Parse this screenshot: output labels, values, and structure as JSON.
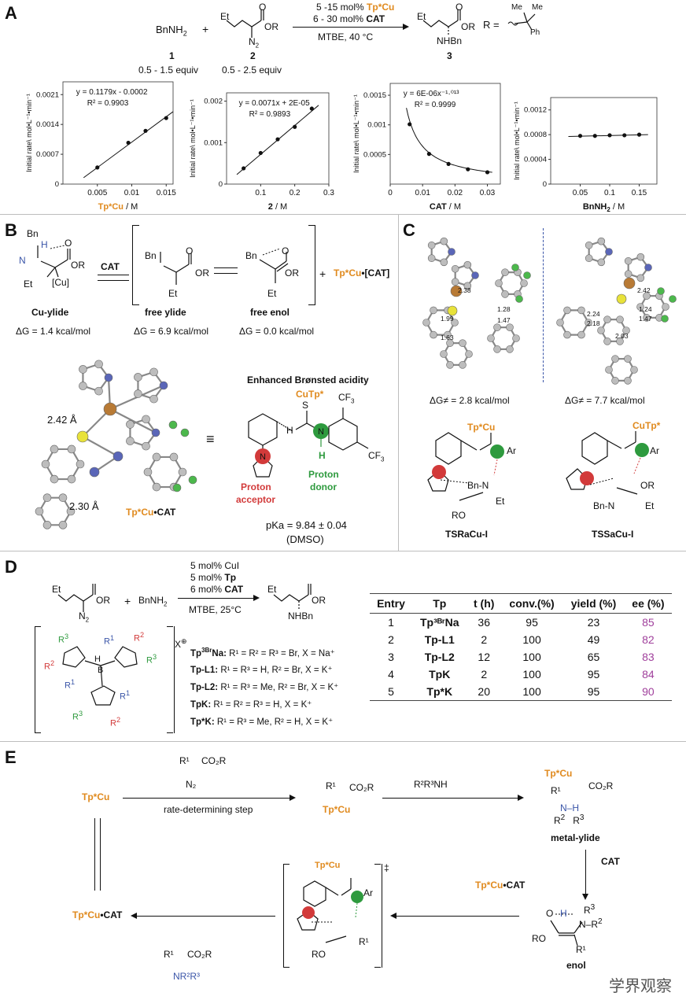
{
  "panels": {
    "A": "A",
    "B": "B",
    "C": "C",
    "D": "D",
    "E": "E"
  },
  "panelA": {
    "reagent1": "BnNH",
    "reagent1_sub": "2",
    "plus": "+",
    "reagent2_label": "2",
    "reagent1_label": "1",
    "equiv1": "0.5 - 1.5 equiv",
    "equiv2": "0.5 - 2.5 equiv",
    "cond_line1_pre": "5 -15 mol% ",
    "cond_line1_cat": "Tp*Cu",
    "cond_line2_pre": "6 - 30 mol% ",
    "cond_line2_cat": "CAT",
    "cond_line3": "MTBE, 40 °C",
    "product_label": "3",
    "r_eq": "R =",
    "frag_et": "Et",
    "frag_or": "OR",
    "frag_n2": "N",
    "frag_nhbn": "NHBn",
    "frag_me": "Me",
    "frag_ph": "Ph"
  },
  "chart_data": [
    {
      "type": "scatter",
      "ylabel": "Initial rate\\ mol•L⁻¹•min⁻¹",
      "xlabel_colored": "Tp*Cu",
      "xlabel_rest": " / M",
      "equation": "y = 0.1179x - 0.0002",
      "r2": "R² = 0.9903",
      "xlim": [
        0,
        0.016
      ],
      "ylim": [
        0,
        0.0024
      ],
      "xticks": [
        "0.005",
        "0.01",
        "0.015"
      ],
      "xtickvals": [
        0.005,
        0.01,
        0.015
      ],
      "yticks": [
        "0",
        "0.0007",
        "0.0014",
        "0.0021"
      ],
      "ytickvals": [
        0,
        0.0007,
        0.0014,
        0.0021
      ],
      "x": [
        0.005,
        0.0095,
        0.012,
        0.015
      ],
      "y": [
        0.00039,
        0.00097,
        0.00125,
        0.00155
      ],
      "fit": [
        [
          0.003,
          0.00015
        ],
        [
          0.016,
          0.0017
        ]
      ]
    },
    {
      "type": "scatter",
      "ylabel": "Initial rate\\ mol•L⁻¹•min⁻¹",
      "xlabel_colored": "",
      "xlabel_bold": "2",
      "xlabel_rest": " / M",
      "equation": "y = 0.0071x + 2E-05",
      "r2": "R² = 0.9893",
      "xlim": [
        0,
        0.3
      ],
      "ylim": [
        0,
        0.0022
      ],
      "xticks": [
        "0.1",
        "0.2",
        "0.3"
      ],
      "xtickvals": [
        0.1,
        0.2,
        0.3
      ],
      "yticks": [
        "0",
        "0.001",
        "0.002"
      ],
      "ytickvals": [
        0,
        0.001,
        0.002
      ],
      "x": [
        0.05,
        0.1,
        0.15,
        0.2,
        0.25
      ],
      "y": [
        0.00038,
        0.00075,
        0.00108,
        0.00138,
        0.00182
      ],
      "fit": [
        [
          0.03,
          0.00023
        ],
        [
          0.27,
          0.0019
        ]
      ]
    },
    {
      "type": "scatter",
      "ylabel": "Initial rate\\ mol•L⁻¹•min⁻¹",
      "xlabel_colored": "",
      "xlabel_bold": "CAT",
      "xlabel_rest": " / M",
      "equation": "y = 6E-06x⁻¹·⁰¹³",
      "r2": "R² = 0.9999",
      "xlim": [
        0,
        0.034
      ],
      "ylim": [
        0,
        0.0017
      ],
      "xticks": [
        "0",
        "0.01",
        "0.02",
        "0.03"
      ],
      "xtickvals": [
        0,
        0.01,
        0.02,
        0.03
      ],
      "yticks": [
        "0.0005",
        "0.001",
        "0.0015"
      ],
      "ytickvals": [
        0.0005,
        0.001,
        0.0015
      ],
      "x": [
        0.006,
        0.012,
        0.018,
        0.024,
        0.03
      ],
      "y": [
        0.00101,
        0.00051,
        0.00034,
        0.00025,
        0.0002
      ],
      "curve": true
    },
    {
      "type": "scatter",
      "ylabel": "Initial rate\\ mol•L⁻¹•min⁻¹",
      "xlabel_colored": "",
      "xlabel_bold": "BnNH",
      "xlabel_sub": "2",
      "xlabel_rest": " / M",
      "equation": "",
      "r2": "",
      "xlim": [
        0,
        0.18
      ],
      "ylim": [
        0,
        0.0014
      ],
      "xticks": [
        "0.05",
        "0.1",
        "0.15"
      ],
      "xtickvals": [
        0.05,
        0.1,
        0.15
      ],
      "yticks": [
        "0",
        "0.0004",
        "0.0008",
        "0.0012"
      ],
      "ytickvals": [
        0,
        0.0004,
        0.0008,
        0.0012
      ],
      "x": [
        0.05,
        0.075,
        0.1,
        0.125,
        0.15
      ],
      "y": [
        0.00078,
        0.00078,
        0.00079,
        0.00079,
        0.0008
      ],
      "fit": [
        [
          0.03,
          0.00077
        ],
        [
          0.165,
          0.0008
        ]
      ]
    }
  ],
  "panelB": {
    "cu_ylide": "Cu-ylide",
    "dg1": "ΔG = 1.4 kcal/mol",
    "cat": "CAT",
    "free_ylide": "free ylide",
    "dg2": "ΔG = 6.9 kcal/mol",
    "free_enol": "free enol",
    "dg3": "ΔG = 0.0 kcal/mol",
    "plus": "+",
    "tpcu": "Tp*Cu",
    "cat_bracket": "•[CAT]",
    "bn": "Bn",
    "h": "H",
    "n": "N",
    "o": "O",
    "or": "OR",
    "et": "Et",
    "cu": "[Cu]",
    "dist1": "2.42 Å",
    "dist2": "2.30 Å",
    "complex_a": "Tp*Cu",
    "complex_b": "•CAT",
    "acidity": "Enhanced Brønsted acidity",
    "cf3a": "CF",
    "cf3b": "CF",
    "three": "3",
    "cutp": "CuTp*",
    "proton_acceptor1": "Proton",
    "proton_acceptor2": "acceptor",
    "proton_donor1": "Proton",
    "proton_donor2": "donor",
    "pka": "pKa = 9.84 ± 0.04",
    "dmso": "(DMSO)",
    "s": "S"
  },
  "panelC": {
    "dga": "ΔG≠ = 2.8 kcal/mol",
    "dgb": "ΔG≠ = 7.7 kcal/mol",
    "ts1": "TSRaCu-I",
    "ts2": "TSSaCu-I",
    "d1": "2.38",
    "d2": "1.99",
    "d3": "1.28",
    "d4": "1.47",
    "d5": "1.63",
    "e1": "2.42",
    "e2": "2.24",
    "e3": "1.24",
    "e4": "1.47",
    "e5": "2.18",
    "e6": "2.03",
    "tpcu": "Tp*Cu",
    "cutp": "CuTp*",
    "ar": "Ar",
    "bn_n": "Bn-N",
    "ro": "RO",
    "et": "Et",
    "or": "OR"
  },
  "panelD": {
    "cond1": "5 mol% CuI",
    "cond2_pre": "5 mol% ",
    "cond2_b": "Tp",
    "cond3_pre": "6 mol% ",
    "cond3_b": "CAT",
    "cond4": "MTBE, 25°C",
    "plus": "+",
    "bnnh2": "BnNH",
    "two": "2",
    "et": "Et",
    "or": "OR",
    "n2": "N",
    "nhbn": "NHBn",
    "x_charge": "X",
    "ligands": [
      {
        "name": "Tp",
        "sup": "3Br",
        "name2": "Na:",
        "desc": "R¹ = R² = R³ = Br, X = Na⁺"
      },
      {
        "name": "Tp-L1:",
        "sup": "",
        "name2": "",
        "desc": "R¹ = R³ = H, R² = Br, X = K⁺"
      },
      {
        "name": "Tp-L2:",
        "sup": "",
        "name2": "",
        "desc": "R¹ = R³ = Me, R² = Br, X = K⁺"
      },
      {
        "name": "TpK:",
        "sup": "",
        "name2": "",
        "desc": "R¹ = R² = R³ = H, X = K⁺"
      },
      {
        "name": "Tp*K:",
        "sup": "",
        "name2": "",
        "desc": "R¹ = R³ = Me, R² = H, X = K⁺"
      }
    ],
    "table": {
      "headers": [
        "Entry",
        "Tp",
        "t (h)",
        "conv.(%)",
        "yield (%)",
        "ee (%)"
      ],
      "rows": [
        [
          "1",
          "Tp³ᴮʳNa",
          "36",
          "95",
          "23",
          "85"
        ],
        [
          "2",
          "Tp-L1",
          "2",
          "100",
          "49",
          "82"
        ],
        [
          "3",
          "Tp-L2",
          "12",
          "100",
          "65",
          "83"
        ],
        [
          "4",
          "TpK",
          "2",
          "100",
          "95",
          "84"
        ],
        [
          "5",
          "Tp*K",
          "20",
          "100",
          "95",
          "90"
        ]
      ]
    }
  },
  "panelE": {
    "tpcu": "Tp*Cu",
    "rds": "rate-determining step",
    "amine": "R²R³NH",
    "metal_ylide": "metal-ylide",
    "cat": "CAT",
    "tpcucat_a": "Tp*Cu",
    "tpcucat_b": "•CAT",
    "enol": "enol",
    "co2r": "CO₂R",
    "r1": "R¹",
    "n2": "N₂",
    "nr2r3": "NR²R³",
    "ts_mark": "‡",
    "ar": "Ar",
    "ro": "RO"
  },
  "watermark": "学界观察",
  "colors": {
    "orange": "#e08a1e",
    "red": "#d23a3a",
    "green": "#2e9a3e",
    "blue": "#3a55a8",
    "purple": "#a0409c",
    "copper": "#b87a35"
  }
}
